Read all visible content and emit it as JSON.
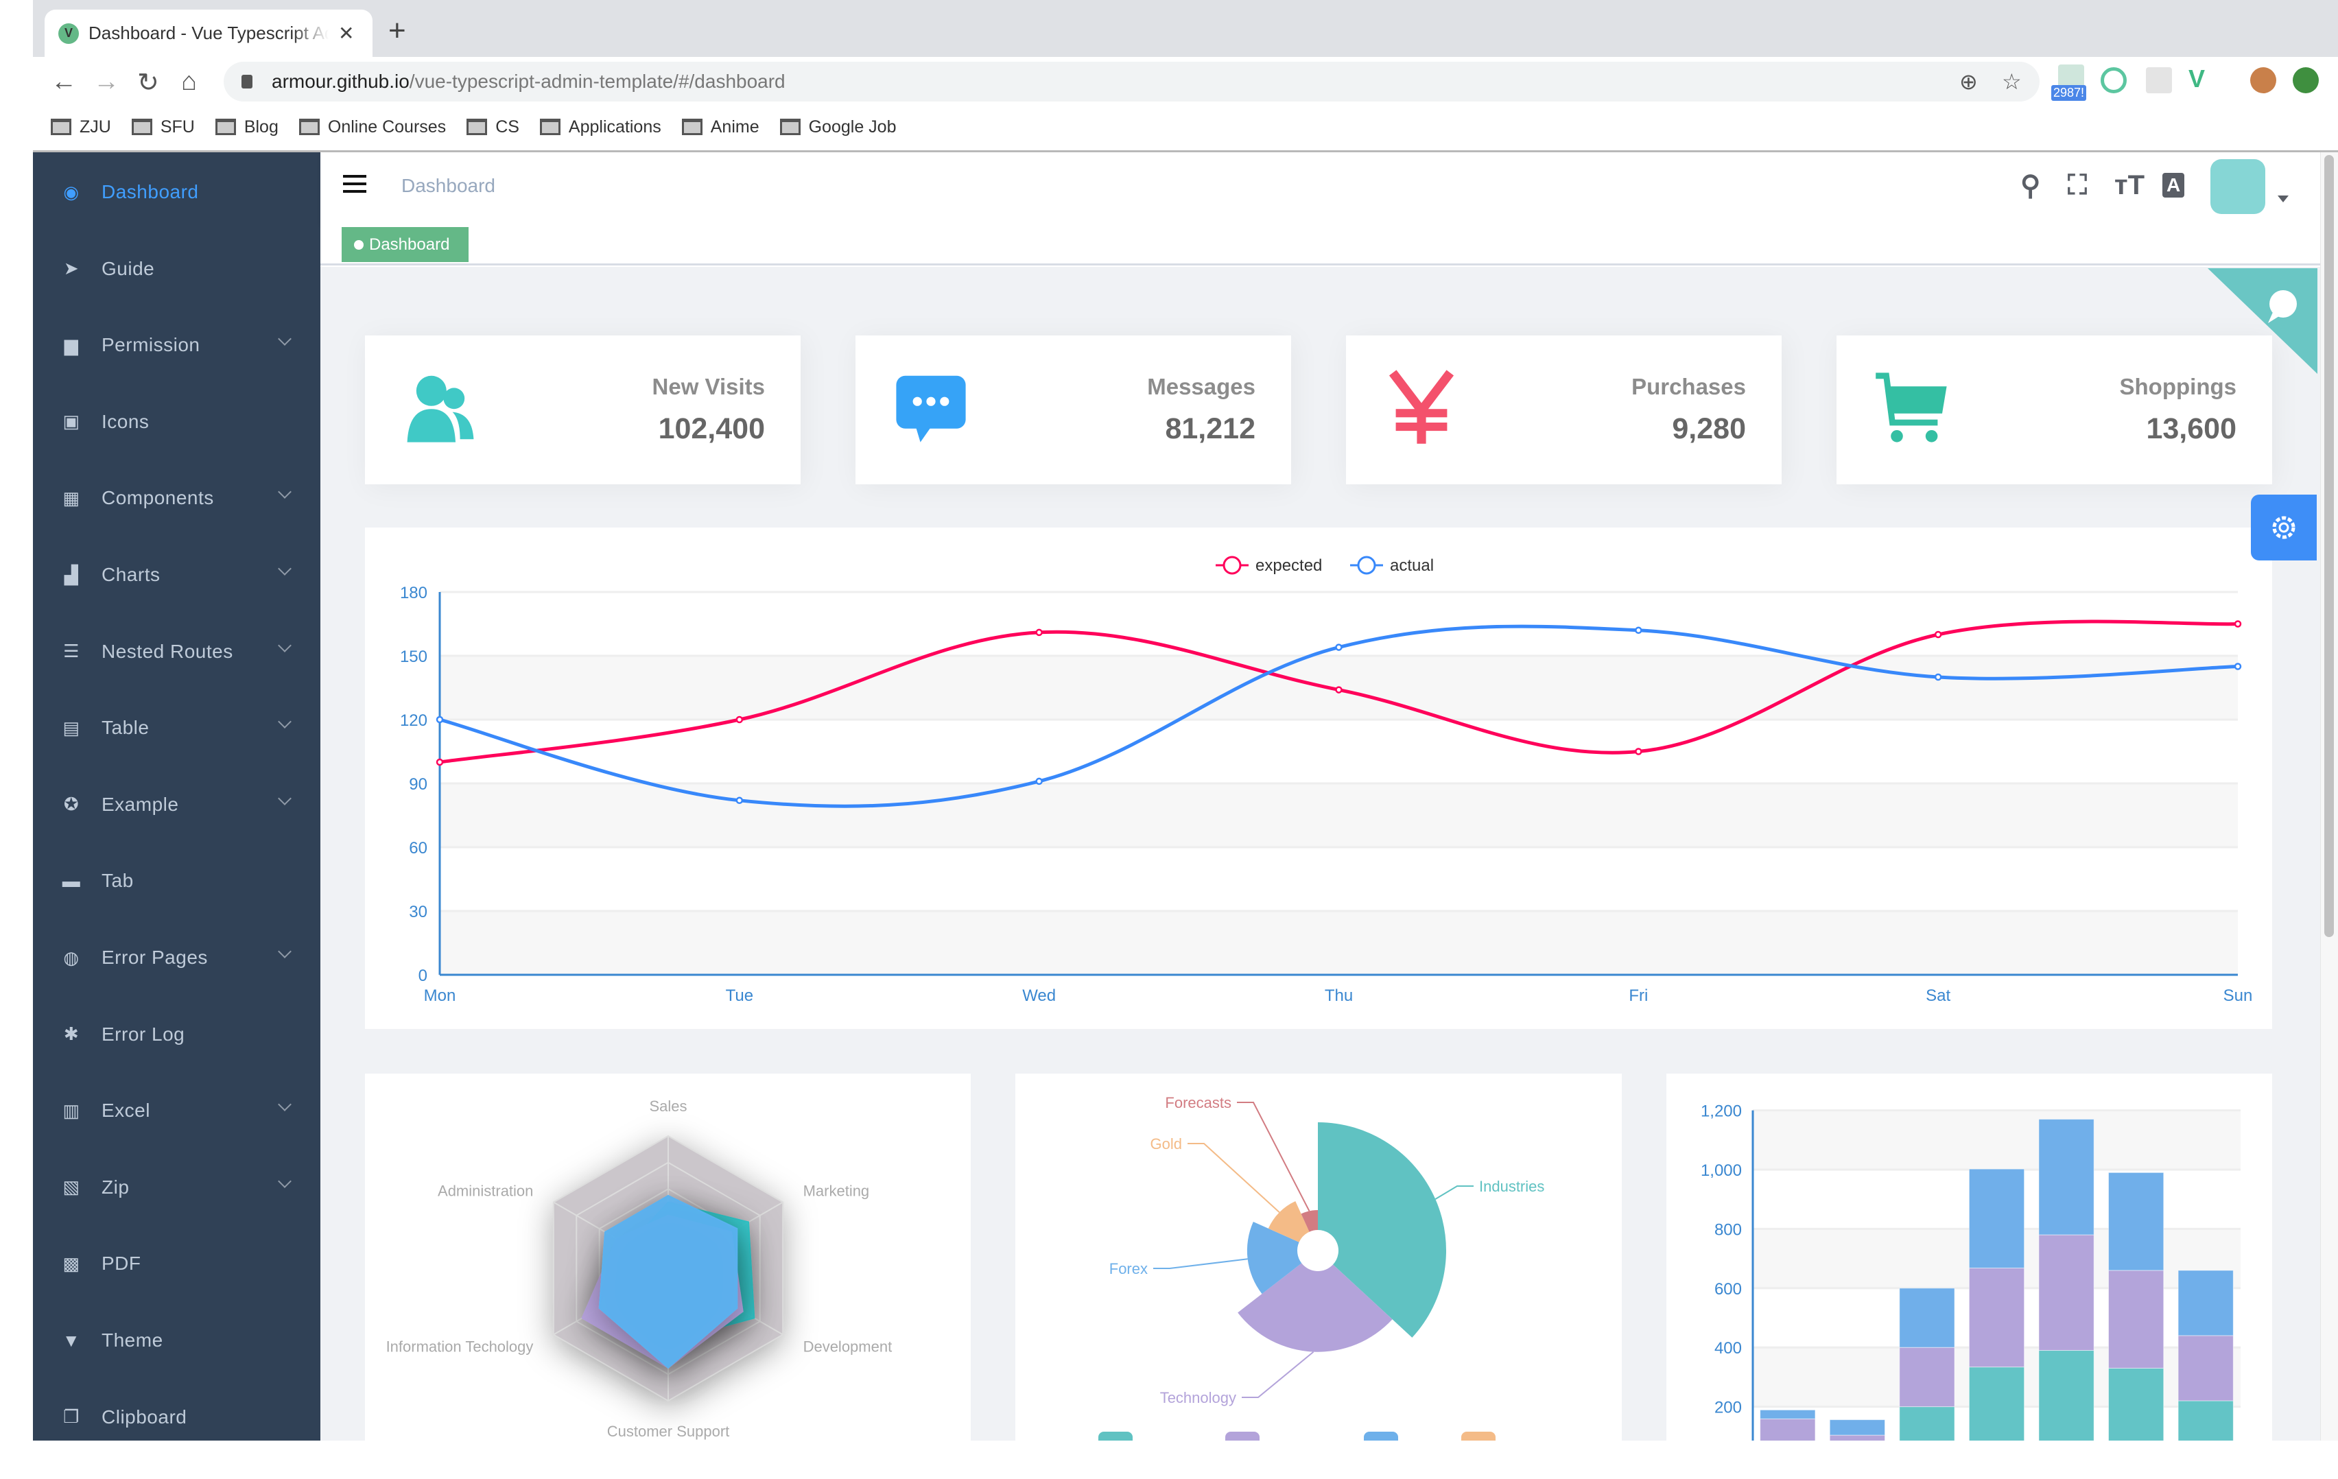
{
  "browser": {
    "tab_title": "Dashboard - Vue Typescript Admin Template",
    "favicon_letter": "V",
    "url_host": "armour.github.io",
    "url_path": "/vue-typescript-admin-template/#/dashboard",
    "extension_badge": "2987!",
    "bookmarks": [
      {
        "label": "ZJU"
      },
      {
        "label": "SFU"
      },
      {
        "label": "Blog"
      },
      {
        "label": "Online Courses"
      },
      {
        "label": "CS"
      },
      {
        "label": "Applications"
      },
      {
        "label": "Anime"
      },
      {
        "label": "Google Job"
      }
    ]
  },
  "sidebar": {
    "items": [
      {
        "label": "Dashboard",
        "icon": "dashboard",
        "glyph": "◉",
        "active": true,
        "submenu": false
      },
      {
        "label": "Guide",
        "icon": "guide",
        "glyph": "➤",
        "submenu": false
      },
      {
        "label": "Permission",
        "icon": "lock",
        "glyph": "▆",
        "submenu": true
      },
      {
        "label": "Icons",
        "icon": "icon",
        "glyph": "▣",
        "submenu": false
      },
      {
        "label": "Components",
        "icon": "component",
        "glyph": "▦",
        "submenu": true
      },
      {
        "label": "Charts",
        "icon": "chart",
        "glyph": "▟",
        "submenu": true
      },
      {
        "label": "Nested Routes",
        "icon": "nested",
        "glyph": "☰",
        "submenu": true
      },
      {
        "label": "Table",
        "icon": "table",
        "glyph": "▤",
        "submenu": true
      },
      {
        "label": "Example",
        "icon": "example",
        "glyph": "✪",
        "submenu": true
      },
      {
        "label": "Tab",
        "icon": "tab",
        "glyph": "▬",
        "submenu": false
      },
      {
        "label": "Error Pages",
        "icon": "404",
        "glyph": "◍",
        "submenu": true
      },
      {
        "label": "Error Log",
        "icon": "bug",
        "glyph": "✱",
        "submenu": false
      },
      {
        "label": "Excel",
        "icon": "excel",
        "glyph": "▥",
        "submenu": true
      },
      {
        "label": "Zip",
        "icon": "zip",
        "glyph": "▧",
        "submenu": true
      },
      {
        "label": "PDF",
        "icon": "pdf",
        "glyph": "▩",
        "submenu": false
      },
      {
        "label": "Theme",
        "icon": "shirt",
        "glyph": "▼",
        "submenu": false
      },
      {
        "label": "Clipboard",
        "icon": "clipboard",
        "glyph": "❐",
        "submenu": false
      }
    ]
  },
  "navbar": {
    "breadcrumb": "Dashboard"
  },
  "tags": [
    {
      "label": "Dashboard",
      "color": "#64b887"
    }
  ],
  "panels": [
    {
      "title": "New Visits",
      "value": "102,400",
      "icon": "peoples",
      "color": "#40c9c6"
    },
    {
      "title": "Messages",
      "value": "81,212",
      "icon": "message",
      "color": "#36a3f7"
    },
    {
      "title": "Purchases",
      "value": "9,280",
      "icon": "money",
      "color": "#f4516c"
    },
    {
      "title": "Shoppings",
      "value": "13,600",
      "icon": "shopping",
      "color": "#34bfa3"
    }
  ],
  "chart_data": [
    {
      "type": "line",
      "categories": [
        "Mon",
        "Tue",
        "Wed",
        "Thu",
        "Fri",
        "Sat",
        "Sun"
      ],
      "series": [
        {
          "name": "expected",
          "color": "#FF005A",
          "values": [
            100,
            120,
            161,
            134,
            105,
            160,
            165
          ]
        },
        {
          "name": "actual",
          "color": "#3888fa",
          "values": [
            120,
            82,
            91,
            154,
            162,
            140,
            145
          ]
        }
      ],
      "ylim": [
        0,
        180
      ],
      "yticks": [
        "0",
        "30",
        "60",
        "90",
        "120",
        "150",
        "180"
      ],
      "smooth": true,
      "grid": true,
      "legend": "top-center"
    },
    {
      "type": "radar",
      "indicators": [
        {
          "name": "Sales",
          "max": 10000
        },
        {
          "name": "Administration",
          "max": 20000
        },
        {
          "name": "Information Techology",
          "max": 20000
        },
        {
          "name": "Customer Support",
          "max": 20000
        },
        {
          "name": "Development",
          "max": 20000
        },
        {
          "name": "Marketing",
          "max": 20000
        }
      ],
      "series": [
        {
          "color": "#2ec7c9",
          "values": [
            5000,
            7000,
            12000,
            11000,
            15000,
            14000
          ]
        },
        {
          "color": "#b6a2de",
          "values": [
            4000,
            9000,
            15000,
            15000,
            13000,
            11000
          ]
        },
        {
          "color": "#5ab1ef",
          "values": [
            5500,
            11000,
            12000,
            15000,
            12000,
            12000
          ]
        }
      ]
    },
    {
      "type": "pie",
      "rose": "radius",
      "slices": [
        {
          "name": "Industries",
          "value": 320,
          "color": "#60c2c2"
        },
        {
          "name": "Technology",
          "value": 240,
          "color": "#b3a3da"
        },
        {
          "name": "Forex",
          "value": 149,
          "color": "#6eb0ea"
        },
        {
          "name": "Gold",
          "value": 100,
          "color": "#f4bb87"
        },
        {
          "name": "Forecasts",
          "value": 59,
          "color": "#d27c82"
        }
      ],
      "legend": "bottom"
    },
    {
      "type": "bar",
      "stacked": true,
      "series": [
        {
          "color": "#63c4c6",
          "values": [
            79,
            52,
            200,
            334,
            390,
            330,
            220
          ]
        },
        {
          "color": "#b3a4da",
          "values": [
            80,
            52,
            200,
            334,
            390,
            330,
            220
          ]
        },
        {
          "color": "#70afea",
          "values": [
            30,
            52,
            200,
            334,
            390,
            330,
            220
          ]
        }
      ],
      "ylim": [
        0,
        1200
      ],
      "yticks": [
        "200",
        "400",
        "600",
        "800",
        "1,000",
        "1,200"
      ],
      "grid": true
    }
  ]
}
